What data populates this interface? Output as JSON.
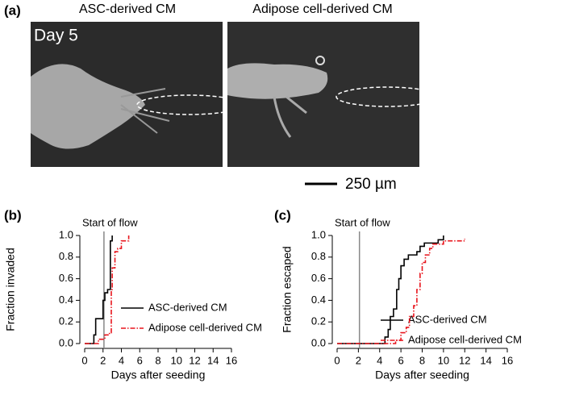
{
  "figure_a": {
    "panel": "(a)",
    "left_title": "ASC-derived CM",
    "right_title": "Adipose cell-derived CM",
    "day": "Day 5",
    "scale_bar": "250 µm"
  },
  "chart_data": [
    {
      "type": "step",
      "panel": "(b)",
      "ylabel": "Fraction invaded",
      "xlabel": "Days after seeding",
      "annotation": {
        "text": "Start of flow",
        "x": 2.1
      },
      "xlim": [
        0,
        16
      ],
      "xticks": [
        0,
        2,
        4,
        6,
        8,
        10,
        12,
        14,
        16
      ],
      "ylim": [
        0,
        1
      ],
      "yticks": [
        {
          "value": 0,
          "label": "0.0"
        },
        {
          "value": 0.2,
          "label": "0.2"
        },
        {
          "value": 0.4,
          "label": "0.4"
        },
        {
          "value": 0.6,
          "label": "0.6"
        },
        {
          "value": 0.8,
          "label": "0.8"
        },
        {
          "value": 1,
          "label": "1.0"
        }
      ],
      "series": [
        {
          "name": "ASC-derived CM",
          "color": "#000000",
          "dash": "solid",
          "x": [
            0,
            1.0,
            1.2,
            2.0,
            2.2,
            2.5,
            2.8,
            3.0
          ],
          "values": [
            0,
            0.08,
            0.23,
            0.4,
            0.47,
            0.5,
            0.95,
            1.0
          ]
        },
        {
          "name": "Adipose cell-derived CM",
          "color": "#e8141c",
          "dash": "dashdot",
          "x": [
            0,
            1.5,
            2.2,
            2.7,
            2.9,
            3.0,
            3.3,
            3.6,
            4.0,
            4.8
          ],
          "values": [
            0,
            0.04,
            0.08,
            0.1,
            0.5,
            0.7,
            0.85,
            0.88,
            0.95,
            1.0
          ]
        }
      ]
    },
    {
      "type": "step",
      "panel": "(c)",
      "ylabel": "Fraction escaped",
      "xlabel": "Days after seeding",
      "annotation": {
        "text": "Start of flow",
        "x": 2.1
      },
      "xlim": [
        0,
        16
      ],
      "xticks": [
        0,
        2,
        4,
        6,
        8,
        10,
        12,
        14,
        16
      ],
      "ylim": [
        0,
        1
      ],
      "yticks": [
        {
          "value": 0,
          "label": "0.0"
        },
        {
          "value": 0.2,
          "label": "0.2"
        },
        {
          "value": 0.4,
          "label": "0.4"
        },
        {
          "value": 0.6,
          "label": "0.6"
        },
        {
          "value": 0.8,
          "label": "0.8"
        },
        {
          "value": 1,
          "label": "1.0"
        }
      ],
      "series": [
        {
          "name": "ASC-derived CM",
          "color": "#000000",
          "dash": "solid",
          "x": [
            0,
            4.5,
            4.8,
            5.0,
            5.3,
            5.6,
            5.8,
            6.0,
            6.3,
            6.7,
            7.5,
            7.8,
            8.2,
            9.5,
            10.0
          ],
          "values": [
            0,
            0.06,
            0.13,
            0.25,
            0.32,
            0.5,
            0.6,
            0.72,
            0.78,
            0.82,
            0.85,
            0.9,
            0.93,
            0.96,
            1.0
          ]
        },
        {
          "name": "Adipose cell-derived CM",
          "color": "#e8141c",
          "dash": "dashdot",
          "x": [
            0,
            5.5,
            6.0,
            6.5,
            6.8,
            7.2,
            7.5,
            7.8,
            8.0,
            8.3,
            8.7,
            9.0,
            10.0,
            12.0
          ],
          "values": [
            0,
            0.03,
            0.1,
            0.15,
            0.25,
            0.35,
            0.5,
            0.65,
            0.75,
            0.82,
            0.88,
            0.92,
            0.95,
            0.97
          ]
        }
      ]
    }
  ]
}
